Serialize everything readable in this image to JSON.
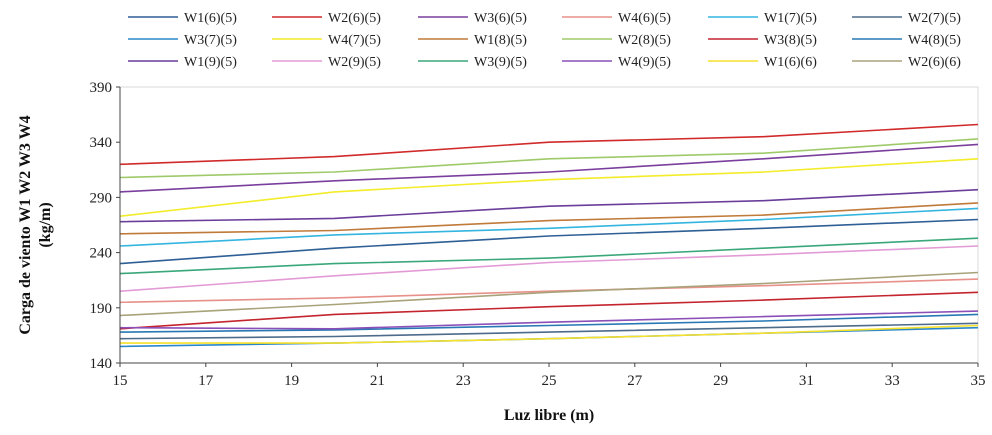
{
  "chart_data": {
    "type": "line",
    "title": "",
    "xlabel": "Luz libre (m)",
    "ylabel": "Carga de viento W1 W2 W3 W4 (kg/m)",
    "ylabel_lines": [
      "Carga de viento W1 W2 W3 W4",
      "(kg/m)"
    ],
    "xlim": [
      15,
      35
    ],
    "ylim": [
      140,
      390
    ],
    "xticks": [
      15,
      17,
      19,
      21,
      23,
      25,
      27,
      29,
      31,
      33,
      35
    ],
    "yticks": [
      140,
      190,
      240,
      290,
      340,
      390
    ],
    "grid": false,
    "legend_position": "top",
    "x": [
      15,
      20,
      25,
      30,
      35
    ],
    "series": [
      {
        "name": "W1(6)(5)",
        "color": "#2e5f95",
        "values": [
          230,
          244,
          255,
          262,
          270
        ]
      },
      {
        "name": "W2(6)(5)",
        "color": "#d12a2a",
        "values": [
          320,
          327,
          340,
          345,
          356
        ]
      },
      {
        "name": "W3(6)(5)",
        "color": "#7a3e9d",
        "values": [
          295,
          305,
          313,
          325,
          338
        ]
      },
      {
        "name": "W4(6)(5)",
        "color": "#e8908a",
        "values": [
          195,
          199,
          205,
          210,
          216
        ]
      },
      {
        "name": "W1(7)(5)",
        "color": "#33b5e0",
        "values": [
          246,
          256,
          262,
          270,
          280
        ]
      },
      {
        "name": "W2(7)(5)",
        "color": "#4d6b8a",
        "values": [
          162,
          164,
          168,
          172,
          176
        ]
      },
      {
        "name": "W3(7)(5)",
        "color": "#2a88c9",
        "values": [
          155,
          158,
          162,
          167,
          172
        ]
      },
      {
        "name": "W4(7)(5)",
        "color": "#f3ec2a",
        "values": [
          273,
          295,
          306,
          313,
          325
        ]
      },
      {
        "name": "W1(8)(5)",
        "color": "#c07a3a",
        "values": [
          257,
          260,
          269,
          274,
          285
        ]
      },
      {
        "name": "W2(8)(5)",
        "color": "#9fca6a",
        "values": [
          308,
          313,
          325,
          330,
          343
        ]
      },
      {
        "name": "W3(8)(5)",
        "color": "#c4242e",
        "values": [
          171,
          184,
          191,
          197,
          204
        ]
      },
      {
        "name": "W4(8)(5)",
        "color": "#2978b5",
        "values": [
          168,
          170,
          174,
          178,
          184
        ]
      },
      {
        "name": "W1(9)(5)",
        "color": "#6a3d9a",
        "values": [
          268,
          271,
          282,
          287,
          297
        ]
      },
      {
        "name": "W2(9)(5)",
        "color": "#e39bd6",
        "values": [
          205,
          219,
          231,
          238,
          246
        ]
      },
      {
        "name": "W3(9)(5)",
        "color": "#3aa77a",
        "values": [
          221,
          230,
          235,
          244,
          253
        ]
      },
      {
        "name": "W4(9)(5)",
        "color": "#8b4fb8",
        "values": [
          172,
          171,
          177,
          182,
          187
        ]
      },
      {
        "name": "W1(6)(6)",
        "color": "#f5e02a",
        "values": [
          158,
          158,
          162,
          167,
          174
        ]
      },
      {
        "name": "W2(6)(6)",
        "color": "#a8a37a",
        "values": [
          183,
          193,
          204,
          212,
          222
        ]
      }
    ]
  }
}
